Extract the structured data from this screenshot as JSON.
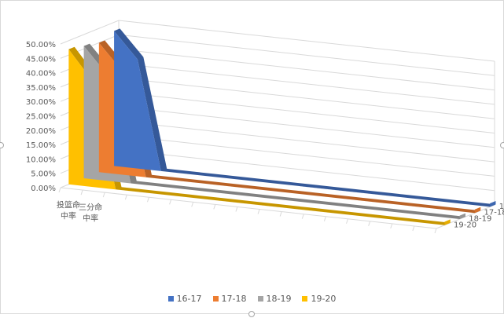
{
  "chart_data": {
    "type": "area",
    "style": "3d-ribbon",
    "categories": [
      "投篮命\n中率",
      "三分命\n中率",
      "",
      "",
      "",
      "",
      "",
      "",
      "",
      "",
      "",
      "",
      "",
      "",
      "",
      "",
      ""
    ],
    "series": [
      {
        "name": "16-17",
        "color": "#4472c4",
        "values": [
          0.47,
          0.38,
          0.0,
          0.0,
          0.0,
          0.0,
          0.0,
          0.0,
          0.0,
          0.0,
          0.0,
          0.0,
          0.0,
          0.0,
          0.0,
          0.0,
          0.0
        ]
      },
      {
        "name": "17-18",
        "color": "#ed7d31",
        "values": [
          0.45,
          0.36,
          0.0,
          0.0,
          0.0,
          0.0,
          0.0,
          0.0,
          0.0,
          0.0,
          0.0,
          0.0,
          0.0,
          0.0,
          0.0,
          0.0,
          0.0
        ]
      },
      {
        "name": "18-19",
        "color": "#a5a5a5",
        "values": [
          0.46,
          0.37,
          0.0,
          0.0,
          0.0,
          0.0,
          0.0,
          0.0,
          0.0,
          0.0,
          0.0,
          0.0,
          0.0,
          0.0,
          0.0,
          0.0,
          0.0
        ]
      },
      {
        "name": "19-20",
        "color": "#ffc000",
        "values": [
          0.47,
          0.37,
          0.0,
          0.0,
          0.0,
          0.0,
          0.0,
          0.0,
          0.0,
          0.0,
          0.0,
          0.0,
          0.0,
          0.0,
          0.0,
          0.0,
          0.0
        ]
      }
    ],
    "y_tick_labels": [
      "0.00%",
      "5.00%",
      "10.00%",
      "15.00%",
      "20.00%",
      "25.00%",
      "30.00%",
      "35.00%",
      "40.00%",
      "45.00%",
      "50.00%"
    ],
    "ylim": [
      0,
      0.5
    ],
    "grid": true,
    "legend": "bottom",
    "title": "",
    "xlabel": "",
    "ylabel": ""
  }
}
